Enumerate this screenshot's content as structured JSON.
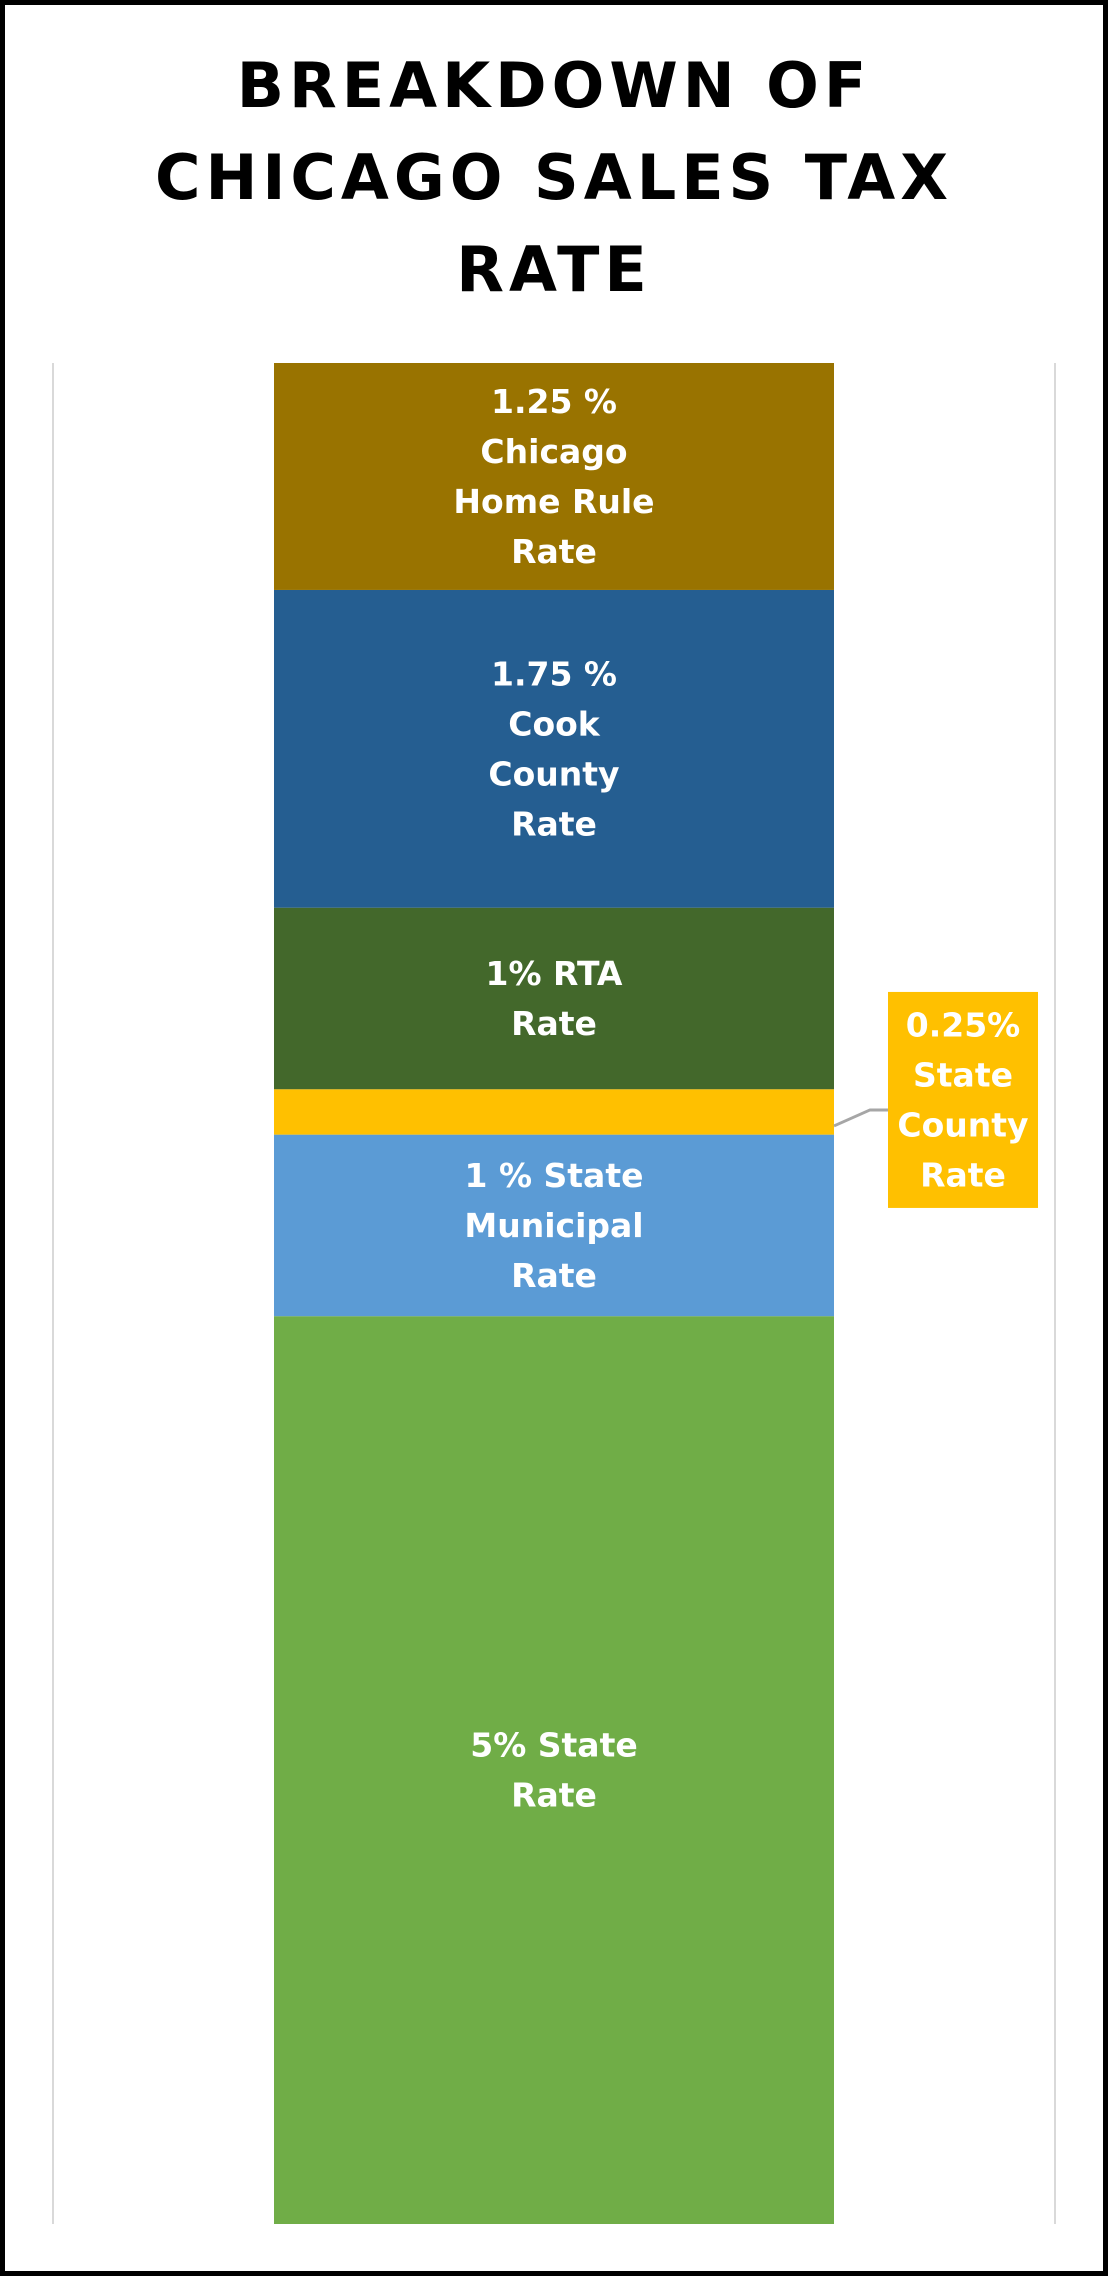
{
  "chart_data": {
    "type": "bar",
    "stacked": true,
    "title_lines": [
      "BREAKDOWN OF",
      "CHICAGO SALES TAX",
      "RATE"
    ],
    "categories": [
      ""
    ],
    "unit": "%",
    "series": [
      {
        "value": 5,
        "color": "#70AD47",
        "label_lines": [
          "5% State",
          "Rate"
        ]
      },
      {
        "value": 1,
        "color": "#5B9BD5",
        "label_lines": [
          "1 % State",
          "Municipal",
          "Rate"
        ]
      },
      {
        "value": 0.25,
        "color": "#FFC000",
        "label_lines": [
          "0.25%",
          "State",
          "County",
          "Rate"
        ],
        "callout": true
      },
      {
        "value": 1,
        "color": "#43682B",
        "label_lines": [
          "1% RTA",
          "Rate"
        ]
      },
      {
        "value": 1.75,
        "color": "#255E91",
        "label_lines": [
          "1.75 %",
          "Cook",
          "County",
          "Rate"
        ]
      },
      {
        "value": 1.25,
        "color": "#997300",
        "label_lines": [
          "1.25 %",
          "Chicago",
          "Home Rule",
          "Rate"
        ]
      }
    ],
    "ylim": [
      0,
      10.25
    ],
    "grid": false,
    "legend": "none"
  }
}
